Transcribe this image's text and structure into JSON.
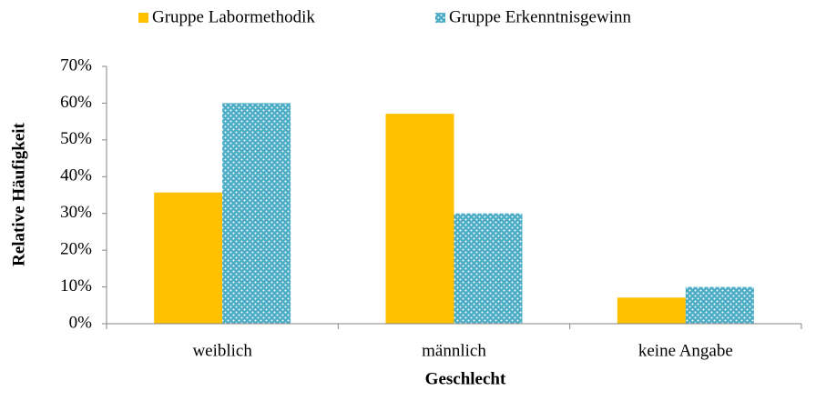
{
  "chart_data": {
    "type": "bar",
    "x_label": "Geschlecht",
    "y_label": "Relative Häufigkeit",
    "categories": [
      "weiblich",
      "männlich",
      "keine Angabe"
    ],
    "series": [
      {
        "name": "Gruppe Labormethodik",
        "color": "#ffc000",
        "values": [
          35.7,
          57.1,
          7.1
        ]
      },
      {
        "name": "Gruppe Erkenntnisgewinn",
        "color": "#4bacc6",
        "pattern": "dots",
        "values": [
          60,
          30,
          10
        ]
      }
    ],
    "ylim": [
      0,
      70
    ],
    "yticks": [
      {
        "value": 0,
        "label": "0%"
      },
      {
        "value": 10,
        "label": "10%"
      },
      {
        "value": 20,
        "label": "20%"
      },
      {
        "value": 30,
        "label": "30%"
      },
      {
        "value": 40,
        "label": "40%"
      },
      {
        "value": 50,
        "label": "50%"
      },
      {
        "value": 60,
        "label": "60%"
      },
      {
        "value": 70,
        "label": "70%"
      }
    ],
    "grid": false,
    "legend": "top"
  }
}
